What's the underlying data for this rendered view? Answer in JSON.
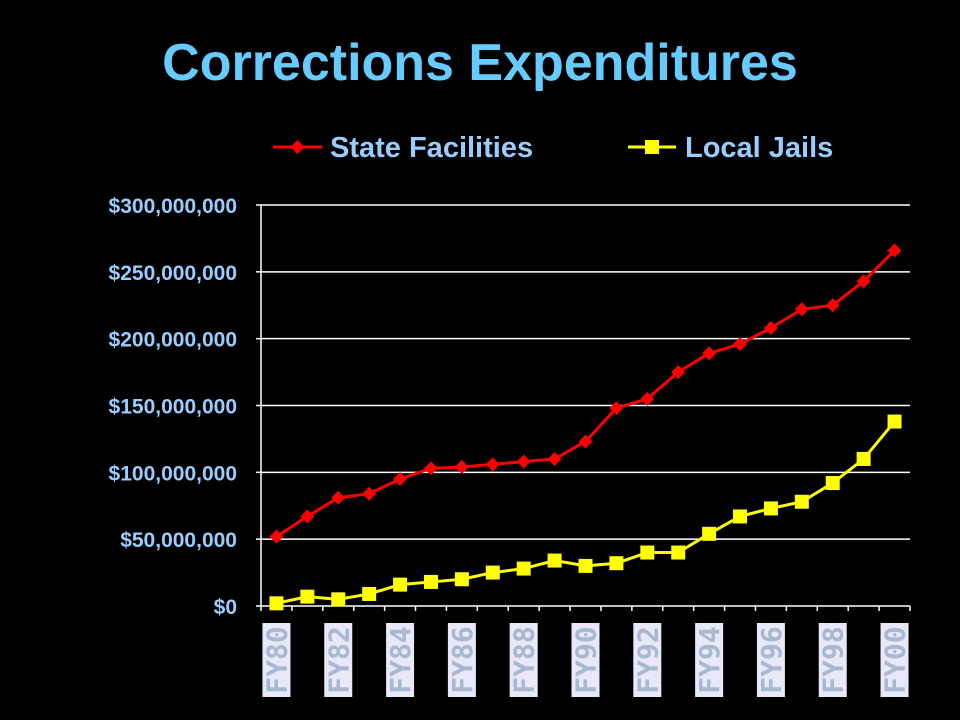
{
  "title": "Corrections Expenditures",
  "colors": {
    "title": "#66ccff",
    "ticks": "#99ccff",
    "gridlines": "#ffffff",
    "state": "#ff0000",
    "local": "#ffff00",
    "xlabel_bg": "#e8e8f8",
    "xlabel_text": "#a8b8d0"
  },
  "chart_data": {
    "type": "line",
    "title": "Corrections Expenditures",
    "xlabel": "",
    "ylabel": "",
    "ylim": [
      0,
      300000000
    ],
    "yticks": [
      "$0",
      "$50,000,000",
      "$100,000,000",
      "$150,000,000",
      "$200,000,000",
      "$250,000,000",
      "$300,000,000"
    ],
    "grid": true,
    "legend_position": "top",
    "x": [
      "FY80",
      "FY81",
      "FY82",
      "FY83",
      "FY84",
      "FY85",
      "FY86",
      "FY87",
      "FY88",
      "FY89",
      "FY90",
      "FY91",
      "FY92",
      "FY93",
      "FY94",
      "FY95",
      "FY96",
      "FY97",
      "FY98",
      "FY99",
      "FY00"
    ],
    "x_tick_labels": [
      "FY80",
      "FY82",
      "FY84",
      "FY86",
      "FY88",
      "FY90",
      "FY92",
      "FY94",
      "FY96",
      "FY98",
      "FY00"
    ],
    "series": [
      {
        "name": "State Facilities",
        "marker": "diamond",
        "values": [
          52000000,
          67000000,
          81000000,
          84000000,
          95000000,
          103000000,
          104000000,
          106000000,
          108000000,
          110000000,
          123000000,
          148000000,
          155000000,
          175000000,
          189000000,
          196000000,
          208000000,
          222000000,
          225000000,
          243000000,
          266000000
        ]
      },
      {
        "name": "Local Jails",
        "marker": "square",
        "values": [
          2000000,
          7000000,
          5000000,
          9000000,
          16000000,
          18000000,
          20000000,
          25000000,
          28000000,
          34000000,
          30000000,
          32000000,
          40000000,
          40000000,
          54000000,
          67000000,
          73000000,
          78000000,
          92000000,
          110000000,
          138000000
        ]
      }
    ]
  }
}
